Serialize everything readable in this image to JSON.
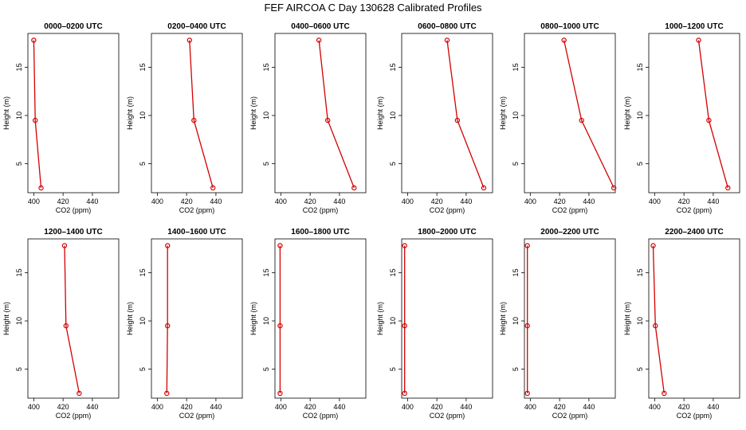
{
  "figure": {
    "title": "FEF AIRCOA C  Day 130628  Calibrated Profiles"
  },
  "style": {
    "line_color": "#d40000",
    "point_color": "#d40000",
    "axis_color": "#000000"
  },
  "chart_data": [
    {
      "type": "line",
      "title": "0000–0200 UTC",
      "xlabel": "CO2 (ppm)",
      "ylabel": "Height (m)",
      "xlim": [
        396,
        458
      ],
      "ylim": [
        2,
        18.5
      ],
      "xticks": [
        "400",
        "420",
        "440"
      ],
      "yticks": [
        "5",
        "10",
        "15"
      ],
      "series": [
        {
          "x": [
            400,
            401,
            405
          ],
          "y": [
            17.8,
            9.5,
            2.5
          ]
        }
      ]
    },
    {
      "type": "line",
      "title": "0200–0400 UTC",
      "xlabel": "CO2 (ppm)",
      "ylabel": "Height (m)",
      "xlim": [
        396,
        458
      ],
      "ylim": [
        2,
        18.5
      ],
      "xticks": [
        "400",
        "420",
        "440"
      ],
      "yticks": [
        "5",
        "10",
        "15"
      ],
      "series": [
        {
          "x": [
            422,
            425,
            438
          ],
          "y": [
            17.8,
            9.5,
            2.5
          ]
        }
      ]
    },
    {
      "type": "line",
      "title": "0400–0600 UTC",
      "xlabel": "CO2 (ppm)",
      "ylabel": "Height (m)",
      "xlim": [
        396,
        458
      ],
      "ylim": [
        2,
        18.5
      ],
      "xticks": [
        "400",
        "420",
        "440"
      ],
      "yticks": [
        "5",
        "10",
        "15"
      ],
      "series": [
        {
          "x": [
            426,
            432,
            450
          ],
          "y": [
            17.8,
            9.5,
            2.5
          ]
        }
      ]
    },
    {
      "type": "line",
      "title": "0600–0800 UTC",
      "xlabel": "CO2 (ppm)",
      "ylabel": "Height (m)",
      "xlim": [
        396,
        458
      ],
      "ylim": [
        2,
        18.5
      ],
      "xticks": [
        "400",
        "420",
        "440"
      ],
      "yticks": [
        "5",
        "10",
        "15"
      ],
      "series": [
        {
          "x": [
            427,
            434,
            452
          ],
          "y": [
            17.8,
            9.5,
            2.5
          ]
        }
      ]
    },
    {
      "type": "line",
      "title": "0800–1000 UTC",
      "xlabel": "CO2 (ppm)",
      "ylabel": "Height (m)",
      "xlim": [
        396,
        458
      ],
      "ylim": [
        2,
        18.5
      ],
      "xticks": [
        "400",
        "420",
        "440"
      ],
      "yticks": [
        "5",
        "10",
        "15"
      ],
      "series": [
        {
          "x": [
            423,
            435,
            457
          ],
          "y": [
            17.8,
            9.5,
            2.5
          ]
        }
      ]
    },
    {
      "type": "line",
      "title": "1000–1200 UTC",
      "xlabel": "CO2 (ppm)",
      "ylabel": "Height (m)",
      "xlim": [
        396,
        458
      ],
      "ylim": [
        2,
        18.5
      ],
      "xticks": [
        "400",
        "420",
        "440"
      ],
      "yticks": [
        "5",
        "10",
        "15"
      ],
      "series": [
        {
          "x": [
            430,
            437,
            450
          ],
          "y": [
            17.8,
            9.5,
            2.5
          ]
        }
      ]
    },
    {
      "type": "line",
      "title": "1200–1400 UTC",
      "xlabel": "CO2 (ppm)",
      "ylabel": "Height (m)",
      "xlim": [
        396,
        458
      ],
      "ylim": [
        2,
        18.5
      ],
      "xticks": [
        "400",
        "420",
        "440"
      ],
      "yticks": [
        "5",
        "10",
        "15"
      ],
      "series": [
        {
          "x": [
            421,
            422,
            431
          ],
          "y": [
            17.8,
            9.5,
            2.5
          ]
        }
      ]
    },
    {
      "type": "line",
      "title": "1400–1600 UTC",
      "xlabel": "CO2 (ppm)",
      "ylabel": "Height (m)",
      "xlim": [
        396,
        458
      ],
      "ylim": [
        2,
        18.5
      ],
      "xticks": [
        "400",
        "420",
        "440"
      ],
      "yticks": [
        "5",
        "10",
        "15"
      ],
      "series": [
        {
          "x": [
            407,
            407,
            406.5
          ],
          "y": [
            17.8,
            9.5,
            2.5
          ]
        }
      ]
    },
    {
      "type": "line",
      "title": "1600–1800 UTC",
      "xlabel": "CO2 (ppm)",
      "ylabel": "Height (m)",
      "xlim": [
        396,
        458
      ],
      "ylim": [
        2,
        18.5
      ],
      "xticks": [
        "400",
        "420",
        "440"
      ],
      "yticks": [
        "5",
        "10",
        "15"
      ],
      "series": [
        {
          "x": [
            399.5,
            399.5,
            399.5
          ],
          "y": [
            17.8,
            9.5,
            2.5
          ]
        }
      ]
    },
    {
      "type": "line",
      "title": "1800–2000 UTC",
      "xlabel": "CO2 (ppm)",
      "ylabel": "Height (m)",
      "xlim": [
        396,
        458
      ],
      "ylim": [
        2,
        18.5
      ],
      "xticks": [
        "400",
        "420",
        "440"
      ],
      "yticks": [
        "5",
        "10",
        "15"
      ],
      "series": [
        {
          "x": [
            398,
            398,
            398
          ],
          "y": [
            17.8,
            9.5,
            2.5
          ]
        }
      ]
    },
    {
      "type": "line",
      "title": "2000–2200 UTC",
      "xlabel": "CO2 (ppm)",
      "ylabel": "Height (m)",
      "xlim": [
        396,
        458
      ],
      "ylim": [
        2,
        18.5
      ],
      "xticks": [
        "400",
        "420",
        "440"
      ],
      "yticks": [
        "5",
        "10",
        "15"
      ],
      "series": [
        {
          "x": [
            398,
            398,
            398
          ],
          "y": [
            17.8,
            9.5,
            2.5
          ]
        }
      ]
    },
    {
      "type": "line",
      "title": "2200–2400 UTC",
      "xlabel": "CO2 (ppm)",
      "ylabel": "Height (m)",
      "xlim": [
        396,
        458
      ],
      "ylim": [
        2,
        18.5
      ],
      "xticks": [
        "400",
        "420",
        "440"
      ],
      "yticks": [
        "5",
        "10",
        "15"
      ],
      "series": [
        {
          "x": [
            399,
            400.5,
            406.5
          ],
          "y": [
            17.8,
            9.5,
            2.5
          ]
        }
      ]
    }
  ]
}
